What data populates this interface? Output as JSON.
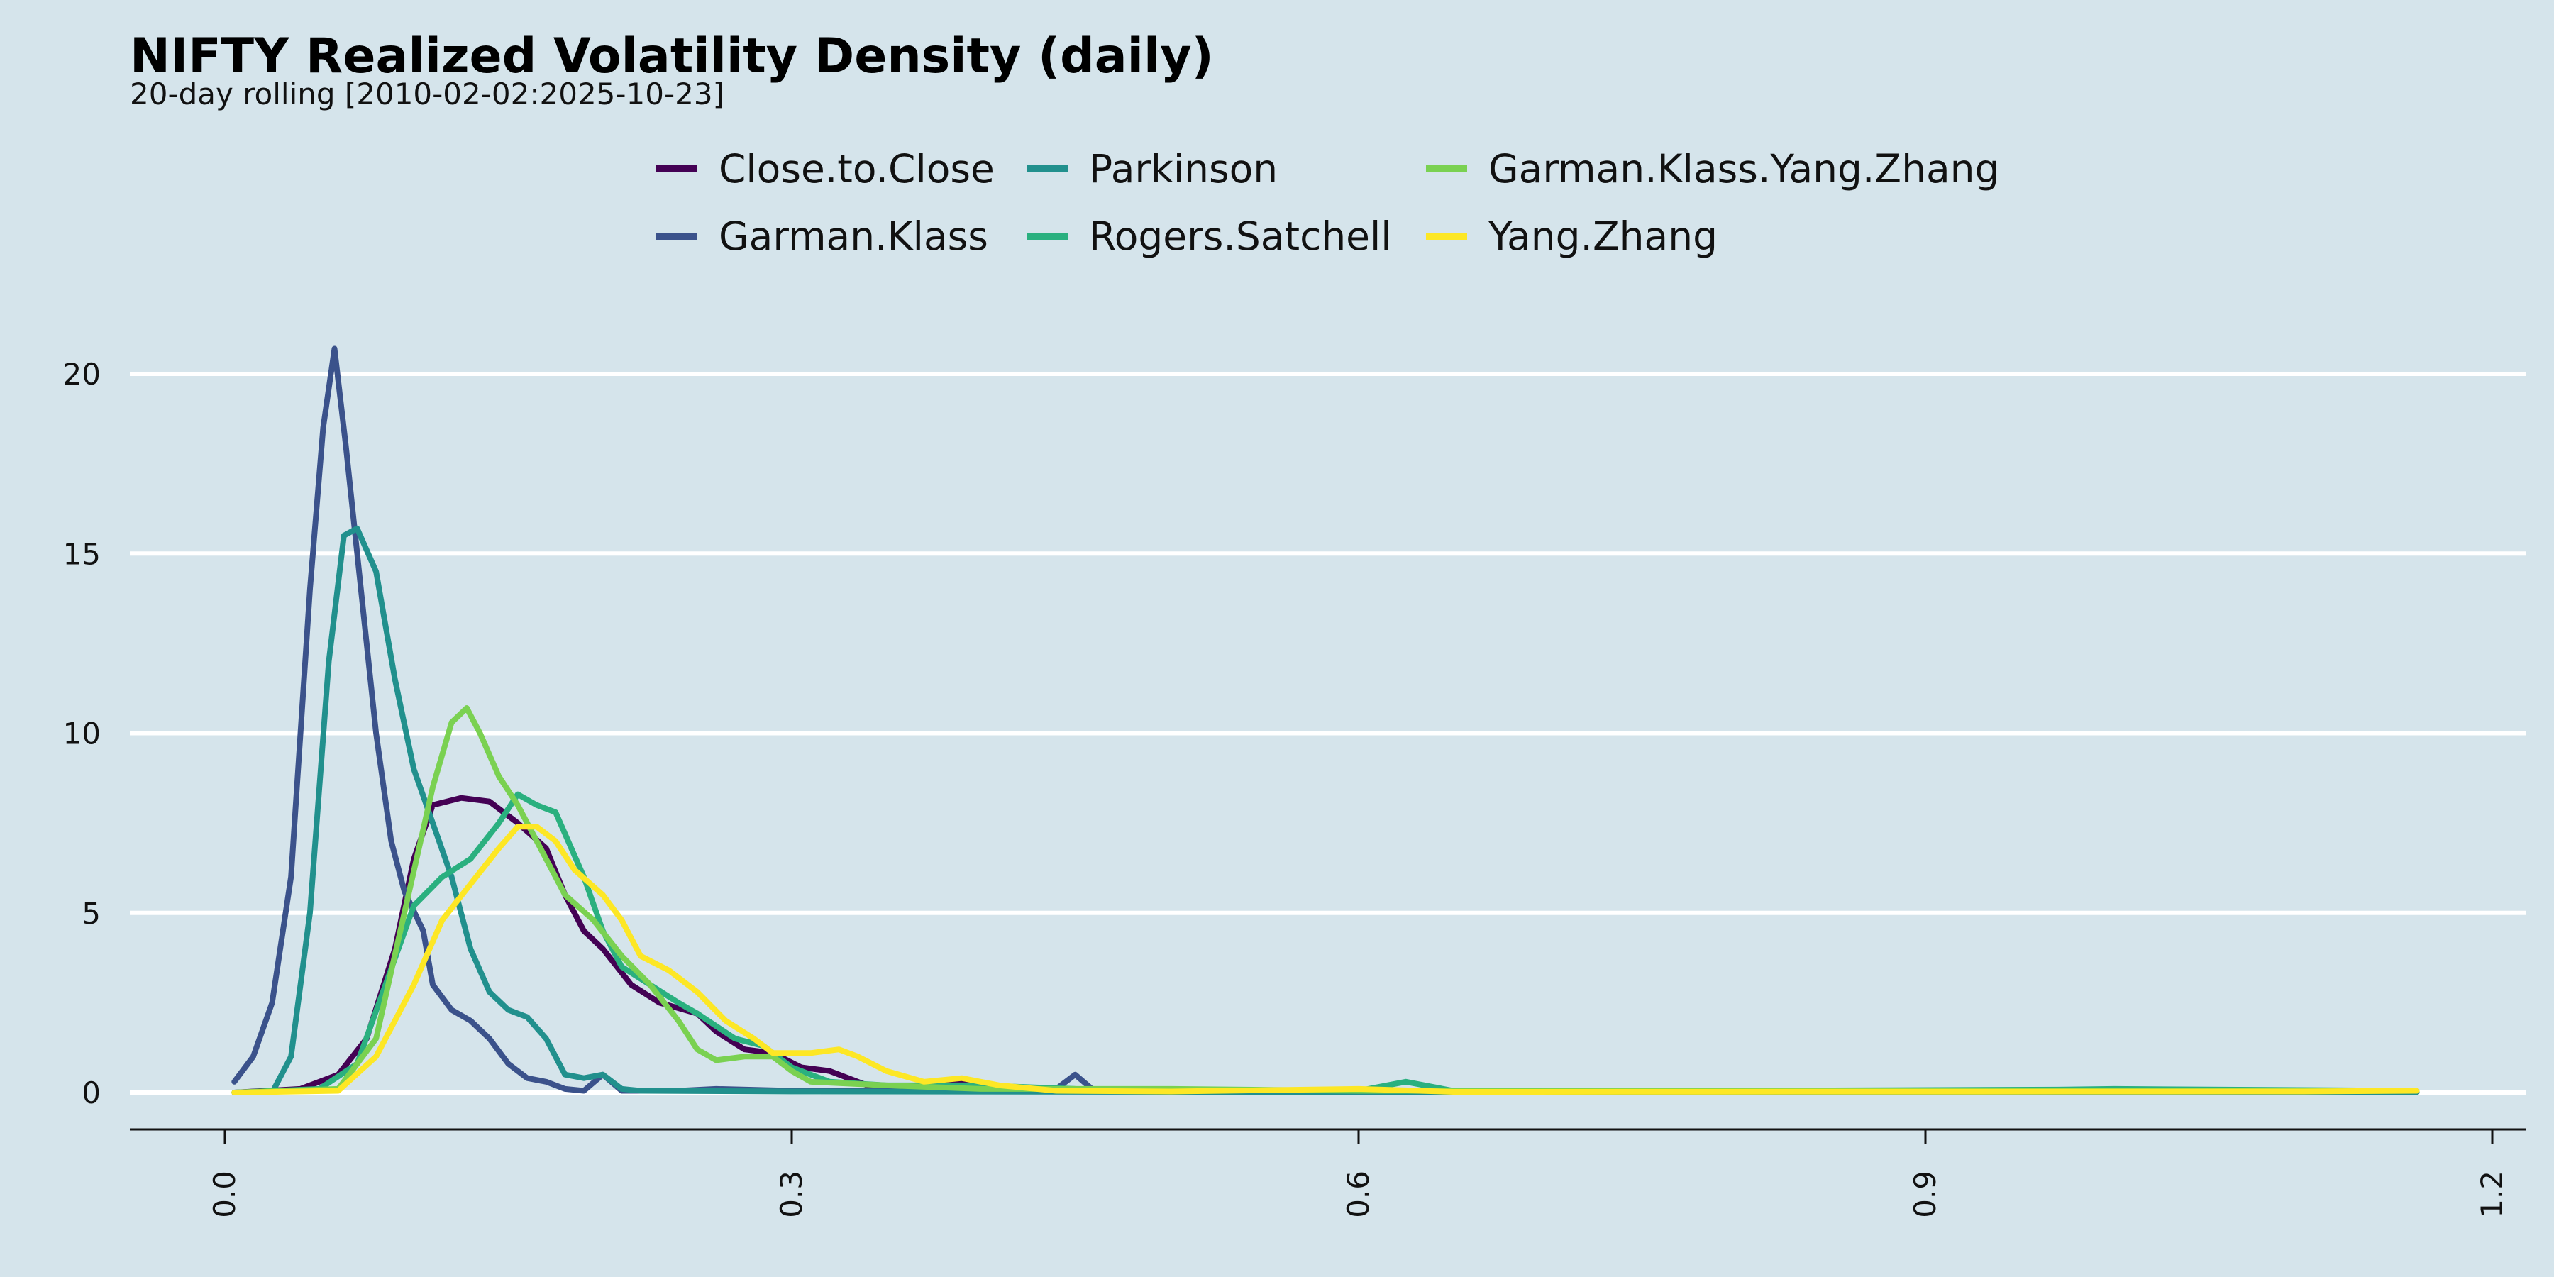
{
  "chart_data": {
    "type": "line",
    "title": "NIFTY Realized Volatility Density (daily)",
    "subtitle": "20-day rolling [2010-02-02:2025-10-23]",
    "xlabel": "",
    "ylabel": "",
    "xlim": [
      -0.05,
      1.22
    ],
    "ylim": [
      -1,
      21
    ],
    "x_ticks": [
      "0.0",
      "0.3",
      "0.6",
      "0.9",
      "1.2"
    ],
    "x_tick_values": [
      0.0,
      0.3,
      0.6,
      0.9,
      1.2
    ],
    "y_ticks": [
      "0",
      "5",
      "10",
      "15",
      "20"
    ],
    "y_tick_values": [
      0,
      5,
      10,
      15,
      20
    ],
    "grid": "horizontal",
    "legend_position": "top",
    "series": [
      {
        "name": "Close.to.Close",
        "color": "#440154",
        "points": [
          [
            0.005,
            0
          ],
          [
            0.04,
            0.1
          ],
          [
            0.06,
            0.5
          ],
          [
            0.075,
            1.5
          ],
          [
            0.09,
            4
          ],
          [
            0.1,
            6.5
          ],
          [
            0.11,
            8
          ],
          [
            0.125,
            8.2
          ],
          [
            0.14,
            8.1
          ],
          [
            0.155,
            7.5
          ],
          [
            0.17,
            6.8
          ],
          [
            0.18,
            5.5
          ],
          [
            0.19,
            4.5
          ],
          [
            0.2,
            4
          ],
          [
            0.215,
            3
          ],
          [
            0.23,
            2.5
          ],
          [
            0.25,
            2.2
          ],
          [
            0.26,
            1.7
          ],
          [
            0.275,
            1.2
          ],
          [
            0.29,
            1.1
          ],
          [
            0.305,
            0.7
          ],
          [
            0.32,
            0.6
          ],
          [
            0.34,
            0.2
          ],
          [
            0.37,
            0.15
          ],
          [
            0.39,
            0.3
          ],
          [
            0.42,
            0.05
          ],
          [
            0.5,
            0.03
          ],
          [
            0.7,
            0.02
          ],
          [
            0.85,
            0.05
          ],
          [
            1.0,
            0.02
          ],
          [
            1.16,
            0.01
          ]
        ]
      },
      {
        "name": "Garman.Klass",
        "color": "#3b528b",
        "points": [
          [
            0.005,
            0.3
          ],
          [
            0.015,
            1
          ],
          [
            0.025,
            2.5
          ],
          [
            0.035,
            6
          ],
          [
            0.045,
            14
          ],
          [
            0.052,
            18.5
          ],
          [
            0.058,
            20.7
          ],
          [
            0.064,
            18
          ],
          [
            0.072,
            14
          ],
          [
            0.08,
            10
          ],
          [
            0.088,
            7
          ],
          [
            0.095,
            5.6
          ],
          [
            0.105,
            4.5
          ],
          [
            0.11,
            3
          ],
          [
            0.12,
            2.3
          ],
          [
            0.13,
            2
          ],
          [
            0.14,
            1.5
          ],
          [
            0.15,
            0.8
          ],
          [
            0.16,
            0.4
          ],
          [
            0.17,
            0.3
          ],
          [
            0.18,
            0.1
          ],
          [
            0.19,
            0.05
          ],
          [
            0.2,
            0.5
          ],
          [
            0.21,
            0.05
          ],
          [
            0.24,
            0.05
          ],
          [
            0.26,
            0.1
          ],
          [
            0.3,
            0.05
          ],
          [
            0.4,
            0.05
          ],
          [
            0.44,
            0.1
          ],
          [
            0.45,
            0.5
          ],
          [
            0.46,
            0.05
          ],
          [
            0.6,
            0.02
          ],
          [
            1.16,
            0.01
          ]
        ]
      },
      {
        "name": "Parkinson",
        "color": "#21908d",
        "points": [
          [
            0.005,
            0
          ],
          [
            0.025,
            0
          ],
          [
            0.035,
            1
          ],
          [
            0.045,
            5
          ],
          [
            0.055,
            12
          ],
          [
            0.063,
            15.5
          ],
          [
            0.07,
            15.7
          ],
          [
            0.08,
            14.5
          ],
          [
            0.09,
            11.5
          ],
          [
            0.1,
            9
          ],
          [
            0.11,
            7.5
          ],
          [
            0.12,
            6
          ],
          [
            0.13,
            4
          ],
          [
            0.14,
            2.8
          ],
          [
            0.15,
            2.3
          ],
          [
            0.16,
            2.1
          ],
          [
            0.17,
            1.5
          ],
          [
            0.18,
            0.5
          ],
          [
            0.19,
            0.4
          ],
          [
            0.2,
            0.5
          ],
          [
            0.21,
            0.1
          ],
          [
            0.22,
            0.05
          ],
          [
            0.3,
            0.03
          ],
          [
            0.5,
            0.02
          ],
          [
            1.16,
            0.01
          ]
        ]
      },
      {
        "name": "Rogers.Satchell",
        "color": "#2ab07f",
        "points": [
          [
            0.005,
            0
          ],
          [
            0.05,
            0.1
          ],
          [
            0.07,
            0.8
          ],
          [
            0.085,
            3
          ],
          [
            0.1,
            5.2
          ],
          [
            0.115,
            6
          ],
          [
            0.13,
            6.5
          ],
          [
            0.145,
            7.5
          ],
          [
            0.155,
            8.3
          ],
          [
            0.165,
            8
          ],
          [
            0.175,
            7.8
          ],
          [
            0.19,
            6
          ],
          [
            0.2,
            4.5
          ],
          [
            0.21,
            3.5
          ],
          [
            0.225,
            3
          ],
          [
            0.24,
            2.5
          ],
          [
            0.25,
            2.2
          ],
          [
            0.27,
            1.5
          ],
          [
            0.285,
            1.3
          ],
          [
            0.3,
            0.7
          ],
          [
            0.32,
            0.3
          ],
          [
            0.35,
            0.2
          ],
          [
            0.4,
            0.2
          ],
          [
            0.45,
            0.1
          ],
          [
            0.5,
            0.08
          ],
          [
            0.6,
            0.05
          ],
          [
            0.625,
            0.3
          ],
          [
            0.65,
            0.05
          ],
          [
            0.8,
            0.05
          ],
          [
            0.97,
            0.08
          ],
          [
            1.0,
            0.1
          ],
          [
            1.16,
            0.05
          ]
        ]
      },
      {
        "name": "Garman.Klass.Yang.Zhang",
        "color": "#7ad151",
        "points": [
          [
            0.005,
            0
          ],
          [
            0.06,
            0.1
          ],
          [
            0.08,
            1.5
          ],
          [
            0.095,
            5
          ],
          [
            0.11,
            8.5
          ],
          [
            0.12,
            10.3
          ],
          [
            0.128,
            10.7
          ],
          [
            0.135,
            10
          ],
          [
            0.145,
            8.8
          ],
          [
            0.155,
            8
          ],
          [
            0.165,
            7
          ],
          [
            0.18,
            5.5
          ],
          [
            0.195,
            4.8
          ],
          [
            0.21,
            3.8
          ],
          [
            0.225,
            3
          ],
          [
            0.24,
            2
          ],
          [
            0.25,
            1.2
          ],
          [
            0.26,
            0.9
          ],
          [
            0.275,
            1
          ],
          [
            0.29,
            1
          ],
          [
            0.3,
            0.6
          ],
          [
            0.31,
            0.3
          ],
          [
            0.35,
            0.2
          ],
          [
            0.4,
            0.1
          ],
          [
            0.45,
            0.1
          ],
          [
            0.5,
            0.1
          ],
          [
            0.6,
            0.05
          ],
          [
            0.8,
            0.05
          ],
          [
            1.16,
            0.05
          ]
        ]
      },
      {
        "name": "Yang.Zhang",
        "color": "#fde725",
        "points": [
          [
            0.005,
            0
          ],
          [
            0.06,
            0.05
          ],
          [
            0.08,
            1
          ],
          [
            0.1,
            3
          ],
          [
            0.115,
            4.8
          ],
          [
            0.13,
            5.8
          ],
          [
            0.145,
            6.8
          ],
          [
            0.155,
            7.4
          ],
          [
            0.165,
            7.4
          ],
          [
            0.175,
            7
          ],
          [
            0.185,
            6.2
          ],
          [
            0.2,
            5.5
          ],
          [
            0.21,
            4.8
          ],
          [
            0.22,
            3.8
          ],
          [
            0.235,
            3.4
          ],
          [
            0.25,
            2.8
          ],
          [
            0.265,
            2
          ],
          [
            0.28,
            1.5
          ],
          [
            0.29,
            1.1
          ],
          [
            0.31,
            1.1
          ],
          [
            0.325,
            1.2
          ],
          [
            0.335,
            1
          ],
          [
            0.35,
            0.6
          ],
          [
            0.37,
            0.3
          ],
          [
            0.39,
            0.4
          ],
          [
            0.41,
            0.2
          ],
          [
            0.44,
            0.05
          ],
          [
            0.5,
            0.03
          ],
          [
            0.6,
            0.1
          ],
          [
            0.65,
            0.02
          ],
          [
            1.1,
            0.03
          ],
          [
            1.16,
            0.05
          ]
        ]
      }
    ]
  }
}
